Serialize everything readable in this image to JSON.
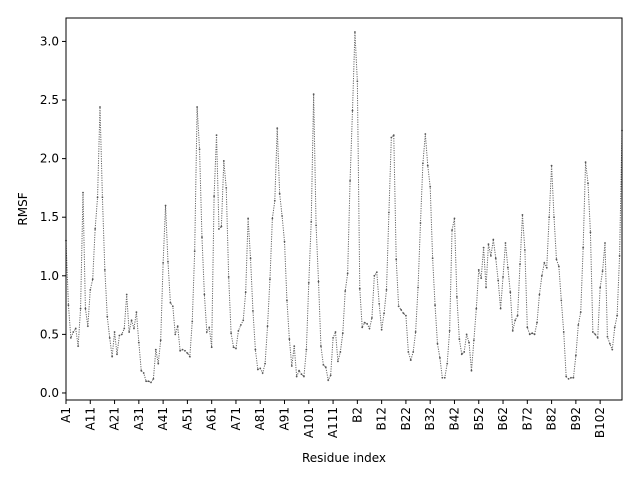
{
  "chart_data": {
    "type": "line",
    "xlabel": "Residue index",
    "ylabel": "RMSF",
    "ylim": [
      -0.06,
      3.2
    ],
    "y_ticks": [
      0.0,
      0.5,
      1.0,
      1.5,
      2.0,
      2.5,
      3.0
    ],
    "y_tick_labels": [
      "0.0",
      "0.5",
      "1.0",
      "1.5",
      "2.0",
      "2.5",
      "3.0"
    ],
    "x_ticks": [
      0,
      10,
      20,
      30,
      40,
      50,
      60,
      70,
      80,
      90,
      100,
      110,
      120,
      130,
      140,
      150,
      160,
      170,
      180,
      190,
      200,
      210,
      220
    ],
    "x_tick_labels": [
      "A1",
      "A11",
      "A21",
      "A31",
      "A41",
      "A51",
      "A61",
      "A71",
      "A81",
      "A91",
      "A101",
      "A111",
      "B2",
      "B12",
      "B22",
      "B32",
      "B42",
      "B52",
      "B62",
      "B72",
      "B82",
      "B92",
      "B102"
    ],
    "grid": false,
    "line_style": "dotted",
    "line_color": "#666666",
    "marker_color": "#555555",
    "values": [
      1.3,
      0.75,
      0.47,
      0.52,
      0.55,
      0.4,
      0.72,
      1.71,
      0.72,
      0.57,
      0.88,
      0.97,
      1.4,
      1.67,
      2.44,
      1.67,
      1.05,
      0.65,
      0.47,
      0.31,
      0.52,
      0.33,
      0.49,
      0.5,
      0.55,
      0.84,
      0.52,
      0.62,
      0.55,
      0.69,
      0.43,
      0.19,
      0.17,
      0.1,
      0.1,
      0.09,
      0.12,
      0.37,
      0.25,
      0.45,
      1.11,
      1.6,
      1.12,
      0.77,
      0.74,
      0.5,
      0.57,
      0.36,
      0.37,
      0.36,
      0.34,
      0.31,
      0.61,
      1.21,
      2.44,
      2.08,
      1.33,
      0.84,
      0.52,
      0.56,
      0.39,
      1.68,
      2.2,
      1.4,
      1.42,
      1.98,
      1.75,
      0.99,
      0.51,
      0.39,
      0.38,
      0.53,
      0.58,
      0.62,
      0.86,
      1.49,
      1.15,
      0.7,
      0.37,
      0.2,
      0.21,
      0.17,
      0.25,
      0.57,
      0.97,
      1.49,
      1.64,
      2.26,
      1.7,
      1.51,
      1.29,
      0.79,
      0.46,
      0.23,
      0.4,
      0.14,
      0.19,
      0.16,
      0.14,
      0.37,
      0.94,
      1.46,
      2.55,
      1.43,
      0.95,
      0.4,
      0.24,
      0.22,
      0.11,
      0.15,
      0.47,
      0.52,
      0.27,
      0.35,
      0.51,
      0.87,
      1.02,
      1.81,
      2.41,
      3.08,
      2.66,
      0.89,
      0.56,
      0.6,
      0.59,
      0.55,
      0.64,
      1.0,
      1.03,
      0.76,
      0.54,
      0.68,
      0.88,
      1.54,
      2.18,
      2.2,
      1.14,
      0.74,
      0.71,
      0.68,
      0.66,
      0.35,
      0.28,
      0.35,
      0.52,
      0.9,
      1.45,
      1.96,
      2.21,
      1.94,
      1.76,
      1.15,
      0.75,
      0.42,
      0.3,
      0.13,
      0.13,
      0.25,
      0.53,
      1.39,
      1.49,
      0.82,
      0.46,
      0.33,
      0.35,
      0.5,
      0.43,
      0.19,
      0.45,
      0.72,
      1.05,
      0.98,
      1.24,
      0.9,
      1.27,
      1.17,
      1.31,
      1.15,
      0.96,
      0.72,
      0.99,
      1.28,
      1.07,
      0.86,
      0.53,
      0.62,
      0.66,
      1.1,
      1.52,
      1.22,
      0.56,
      0.5,
      0.51,
      0.5,
      0.6,
      0.84,
      1.0,
      1.11,
      1.07,
      1.5,
      1.94,
      1.5,
      1.14,
      1.08,
      0.79,
      0.52,
      0.14,
      0.12,
      0.13,
      0.13,
      0.32,
      0.58,
      0.69,
      1.24,
      1.97,
      1.79,
      1.37,
      0.52,
      0.5,
      0.47,
      0.9,
      1.04,
      1.28,
      0.48,
      0.42,
      0.37,
      0.56,
      0.66,
      1.17,
      2.24
    ]
  }
}
